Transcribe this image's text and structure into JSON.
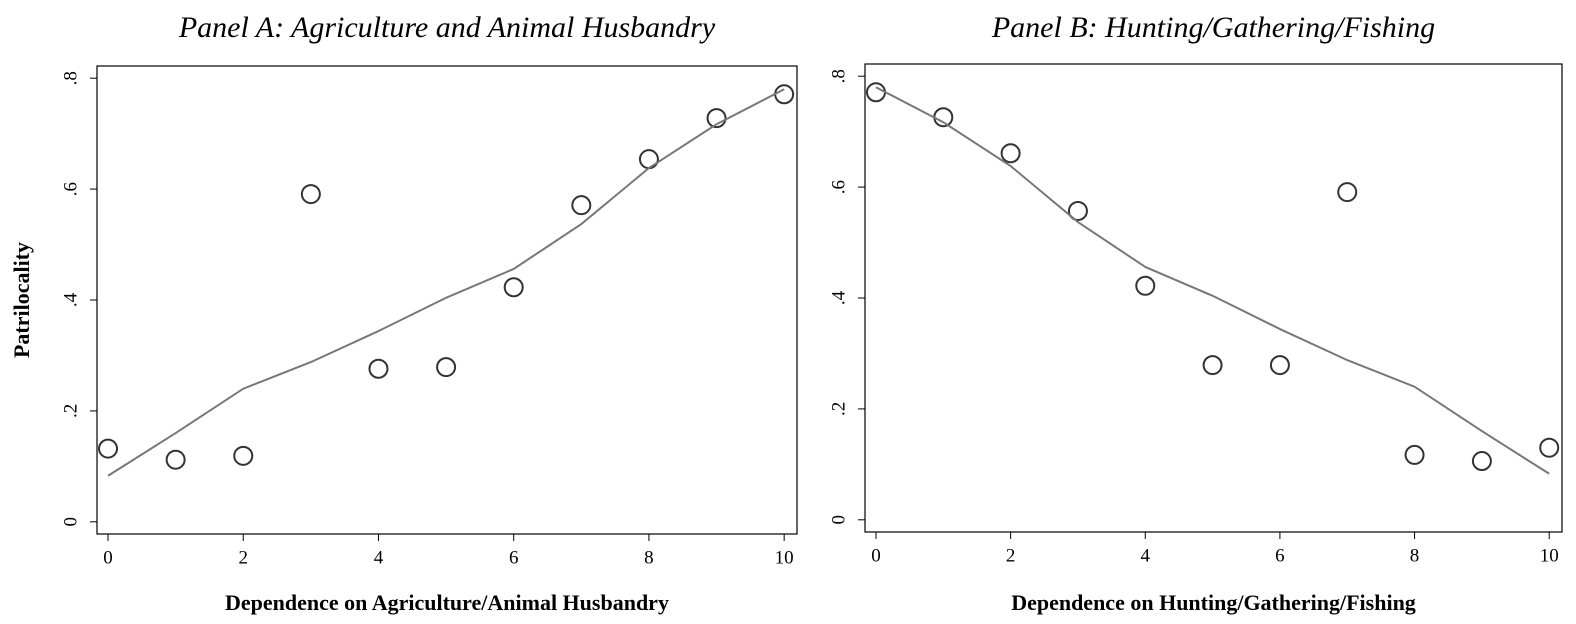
{
  "chart_data": [
    {
      "type": "scatter",
      "title": "Panel A: Agriculture and Animal Husbandry",
      "xlabel": "Dependence on Agriculture/Animal Husbandry",
      "ylabel": "Patrilocality",
      "x": [
        0,
        1,
        2,
        3,
        4,
        5,
        6,
        7,
        8,
        9,
        10
      ],
      "series": [
        {
          "type": "scatter",
          "color": "#333333",
          "values": [
            0.132,
            0.112,
            0.119,
            0.591,
            0.276,
            0.279,
            0.423,
            0.571,
            0.654,
            0.728,
            0.771
          ]
        },
        {
          "type": "line",
          "color": "#777777",
          "values": [
            0.083,
            0.16,
            0.24,
            0.288,
            0.344,
            0.404,
            0.456,
            0.537,
            0.638,
            0.717,
            0.78
          ]
        }
      ],
      "xlim": [
        -0.163,
        10.19
      ],
      "ylim": [
        -0.022,
        0.822
      ],
      "xticks": [
        0,
        2,
        4,
        6,
        8,
        10
      ],
      "yticks": [
        0,
        {
          "value": 0.2,
          "label": ".2"
        },
        {
          "value": 0.4,
          "label": ".4"
        },
        {
          "value": 0.6,
          "label": ".6"
        },
        {
          "value": 0.8,
          "label": ".8"
        }
      ]
    },
    {
      "type": "scatter",
      "title": "Panel B: Hunting/Gathering/Fishing",
      "xlabel": "Dependence on Hunting/Gathering/Fishing",
      "x": [
        0,
        1,
        2,
        3,
        4,
        5,
        6,
        7,
        8,
        9,
        10
      ],
      "series": [
        {
          "type": "scatter",
          "color": "#333333",
          "values": [
            0.771,
            0.726,
            0.661,
            0.557,
            0.422,
            0.279,
            0.279,
            0.591,
            0.117,
            0.106,
            0.13
          ]
        },
        {
          "type": "line",
          "color": "#777777",
          "values": [
            0.78,
            0.717,
            0.638,
            0.537,
            0.456,
            0.404,
            0.344,
            0.288,
            0.24,
            0.16,
            0.083
          ]
        }
      ],
      "xlim": [
        -0.163,
        10.19
      ],
      "ylim": [
        -0.022,
        0.822
      ],
      "xticks": [
        0,
        2,
        4,
        6,
        8,
        10
      ],
      "yticks": [
        0,
        {
          "value": 0.2,
          "label": ".2"
        },
        {
          "value": 0.4,
          "label": ".4"
        },
        {
          "value": 0.6,
          "label": ".6"
        },
        {
          "value": 0.8,
          "label": ".8"
        }
      ]
    }
  ]
}
